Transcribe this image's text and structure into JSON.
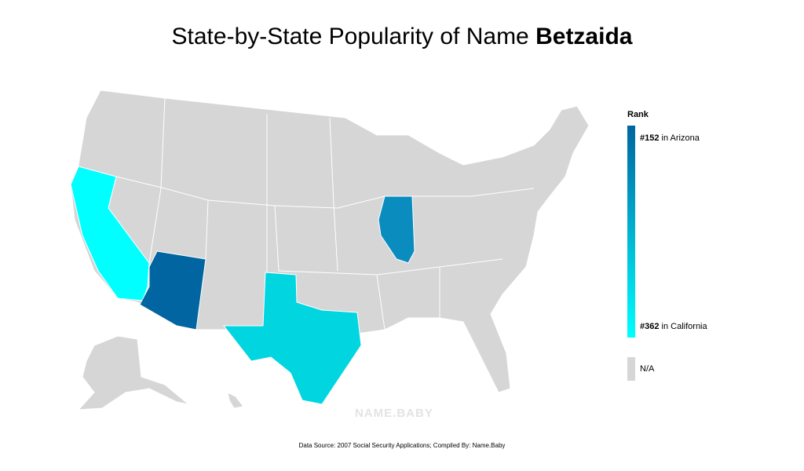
{
  "header": {
    "title": "State-by-State Popularity of Name ",
    "name": "Betzaida"
  },
  "legend": {
    "title": "Rank",
    "top": {
      "rank": "#152",
      "state": " in Arizona",
      "color": "#0065a0"
    },
    "bottom": {
      "rank": "#362",
      "state": " in California",
      "color": "#00ffff"
    },
    "na": {
      "label": "N/A",
      "color": "#d6d6d6"
    }
  },
  "watermark": "NAME.BABY",
  "footer": "Data Source: 2007 Social Security Applications; Compiled By: Name.Baby"
}
